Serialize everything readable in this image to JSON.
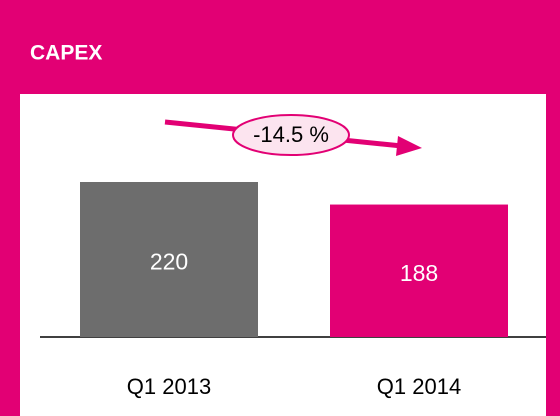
{
  "chart_data": {
    "type": "bar",
    "title": "CAPEX",
    "categories": [
      "Q1 2013",
      "Q1 2014"
    ],
    "values": [
      220,
      188
    ],
    "colors": [
      "#6d6d6d",
      "#e20074"
    ],
    "annotation": "-14.5 %"
  }
}
